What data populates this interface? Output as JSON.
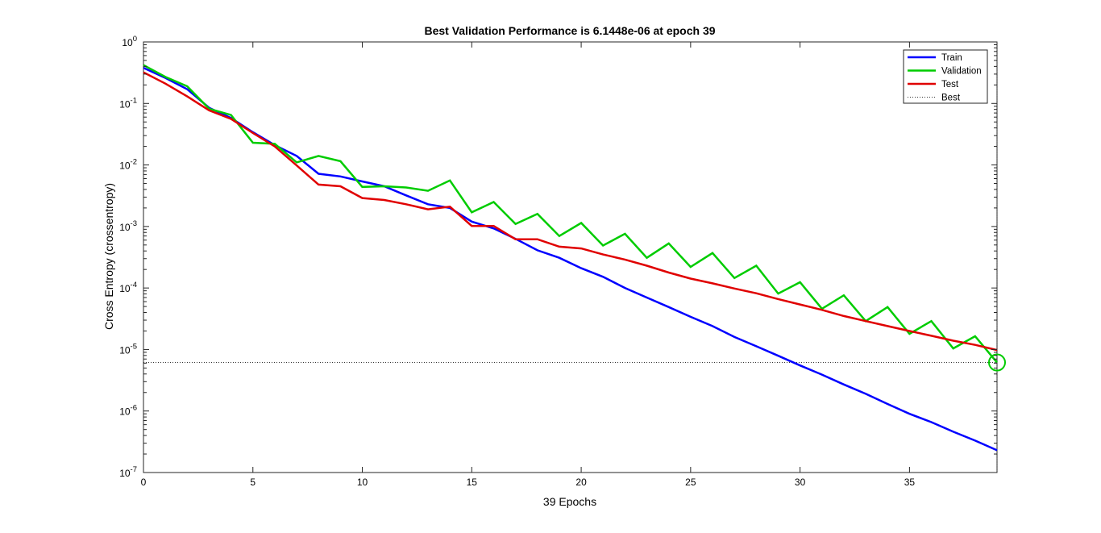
{
  "chart_data": {
    "type": "line",
    "title": "Best Validation Performance is 6.1448e-06 at epoch 39",
    "xlabel": "39 Epochs",
    "ylabel": "Cross Entropy  (crossentropy)",
    "xlim": [
      0,
      39
    ],
    "ylim": [
      1e-07,
      1
    ],
    "yscale": "log",
    "xticks": [
      "0",
      "5",
      "10",
      "15",
      "20",
      "25",
      "30",
      "35"
    ],
    "yticks": [
      {
        "base": "10",
        "exp": "0"
      },
      {
        "base": "10",
        "exp": "-1"
      },
      {
        "base": "10",
        "exp": "-2"
      },
      {
        "base": "10",
        "exp": "-3"
      },
      {
        "base": "10",
        "exp": "-4"
      },
      {
        "base": "10",
        "exp": "-5"
      },
      {
        "base": "10",
        "exp": "-6"
      },
      {
        "base": "10",
        "exp": "-7"
      }
    ],
    "legend_position": "top-right",
    "grid": false,
    "x": [
      0,
      1,
      2,
      3,
      4,
      5,
      6,
      7,
      8,
      9,
      10,
      11,
      12,
      13,
      14,
      15,
      16,
      17,
      18,
      19,
      20,
      21,
      22,
      23,
      24,
      25,
      26,
      27,
      28,
      29,
      30,
      31,
      32,
      33,
      34,
      35,
      36,
      37,
      38,
      39
    ],
    "series": [
      {
        "name": "Train",
        "color": "#0000ff",
        "values": [
          0.38,
          0.26,
          0.17,
          0.085,
          0.058,
          0.034,
          0.021,
          0.014,
          0.0072,
          0.0065,
          0.0054,
          0.0045,
          0.0032,
          0.0023,
          0.002,
          0.0012,
          0.00093,
          0.00063,
          0.00041,
          0.00031,
          0.00021,
          0.000152,
          0.0001,
          7e-05,
          4.9e-05,
          3.4e-05,
          2.4e-05,
          1.6e-05,
          1.13e-05,
          7.9e-06,
          5.5e-06,
          3.9e-06,
          2.7e-06,
          1.9e-06,
          1.3e-06,
          9e-07,
          6.6e-07,
          4.6e-07,
          3.3e-07,
          2.3e-07
        ]
      },
      {
        "name": "Validation",
        "color": "#00cc00",
        "values": [
          0.42,
          0.27,
          0.19,
          0.082,
          0.065,
          0.023,
          0.022,
          0.011,
          0.014,
          0.0115,
          0.0044,
          0.0045,
          0.0043,
          0.0038,
          0.0056,
          0.0017,
          0.0025,
          0.0011,
          0.0016,
          0.0007,
          0.00114,
          0.00049,
          0.00076,
          0.00031,
          0.00053,
          0.00022,
          0.00037,
          0.000145,
          0.00023,
          8.1e-05,
          0.000124,
          4.6e-05,
          7.6e-05,
          2.9e-05,
          4.9e-05,
          1.8e-05,
          2.9e-05,
          1.04e-05,
          1.64e-05,
          6.1448e-06
        ]
      },
      {
        "name": "Test",
        "color": "#e00000",
        "values": [
          0.32,
          0.21,
          0.13,
          0.077,
          0.056,
          0.033,
          0.02,
          0.0098,
          0.0048,
          0.0045,
          0.0029,
          0.0027,
          0.0023,
          0.0019,
          0.0021,
          0.00102,
          0.00102,
          0.00062,
          0.00062,
          0.00047,
          0.00044,
          0.00035,
          0.00029,
          0.00023,
          0.000178,
          0.000142,
          0.000119,
          9.8e-05,
          8.2e-05,
          6.6e-05,
          5.4e-05,
          4.4e-05,
          3.5e-05,
          2.9e-05,
          2.4e-05,
          2e-05,
          1.67e-05,
          1.39e-05,
          1.19e-05,
          9.8e-06
        ]
      },
      {
        "name": "Best",
        "color": "#333333",
        "style": "dotted",
        "best_epoch": 39,
        "best_value": 6.1448e-06
      }
    ]
  }
}
